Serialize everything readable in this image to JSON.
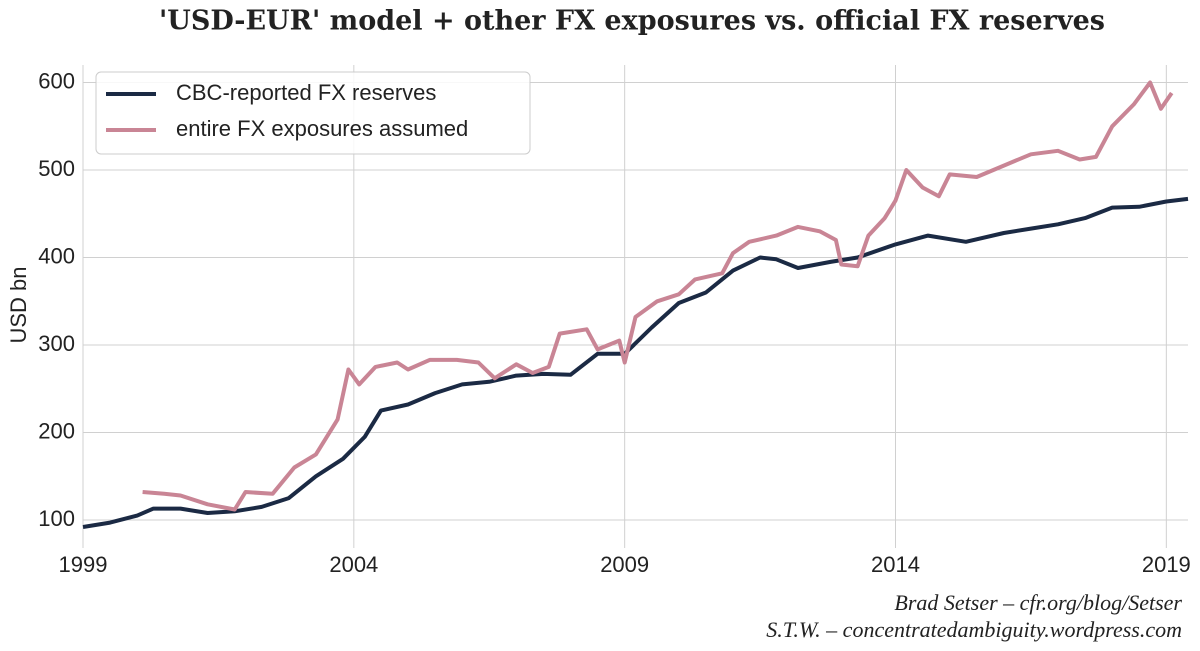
{
  "chart_data": {
    "type": "line",
    "title": "'USD-EUR' model + other FX exposures vs. official FX reserves",
    "y_label": "USD bn",
    "credits": [
      "Brad Setser – cfr.org/blog/Setser",
      "S.T.W. – concentratedambiguity.wordpress.com"
    ],
    "xlim": [
      1999,
      2019.4
    ],
    "xticks": [
      1999,
      2004,
      2009,
      2014,
      2019
    ],
    "ylim": [
      68,
      620
    ],
    "yticks": [
      100,
      200,
      300,
      400,
      500,
      600
    ],
    "grid": true,
    "legend": "upper left",
    "series": [
      {
        "name": "CBC-reported FX reserves",
        "color": "#1b2a44",
        "x": [
          1999,
          1999.5,
          2000,
          2000.3,
          2000.8,
          2001.3,
          2001.8,
          2002.3,
          2002.8,
          2003.3,
          2003.8,
          2004.2,
          2004.5,
          2005,
          2005.5,
          2006,
          2006.5,
          2007,
          2007.5,
          2008,
          2008.5,
          2009,
          2009.5,
          2010,
          2010.5,
          2011,
          2011.5,
          2011.8,
          2012.2,
          2012.8,
          2013.3,
          2014,
          2014.6,
          2015.3,
          2016,
          2016.5,
          2017,
          2017.5,
          2018,
          2018.5,
          2019,
          2019.4
        ],
        "values": [
          92,
          97,
          105,
          113,
          113,
          108,
          110,
          115,
          125,
          150,
          170,
          195,
          225,
          232,
          245,
          255,
          258,
          265,
          267,
          266,
          290,
          290,
          320,
          348,
          360,
          385,
          400,
          398,
          388,
          395,
          400,
          415,
          425,
          418,
          428,
          433,
          438,
          445,
          457,
          458,
          464,
          467
        ]
      },
      {
        "name": "entire FX exposures assumed",
        "color": "#c98595",
        "x": [
          2000.1,
          2000.5,
          2000.8,
          2001.3,
          2001.8,
          2002,
          2002.5,
          2002.9,
          2003.3,
          2003.7,
          2003.9,
          2004.1,
          2004.4,
          2004.8,
          2005,
          2005.4,
          2005.9,
          2006.3,
          2006.6,
          2007,
          2007.3,
          2007.6,
          2007.8,
          2008.3,
          2008.5,
          2008.9,
          2009,
          2009.2,
          2009.6,
          2010,
          2010.3,
          2010.8,
          2011,
          2011.3,
          2011.8,
          2012.2,
          2012.6,
          2012.9,
          2013,
          2013.3,
          2013.5,
          2013.8,
          2014,
          2014.2,
          2014.5,
          2014.8,
          2015,
          2015.5,
          2016,
          2016.5,
          2017,
          2017.4,
          2017.7,
          2018,
          2018.4,
          2018.7,
          2018.9,
          2019.1
        ],
        "values": [
          132,
          130,
          128,
          118,
          112,
          132,
          130,
          160,
          175,
          215,
          272,
          255,
          275,
          280,
          272,
          283,
          283,
          280,
          262,
          278,
          268,
          275,
          313,
          318,
          295,
          305,
          280,
          332,
          350,
          358,
          375,
          382,
          405,
          418,
          425,
          435,
          430,
          420,
          392,
          390,
          425,
          445,
          465,
          500,
          480,
          470,
          495,
          492,
          505,
          518,
          522,
          512,
          515,
          550,
          575,
          600,
          570,
          588
        ]
      }
    ]
  }
}
